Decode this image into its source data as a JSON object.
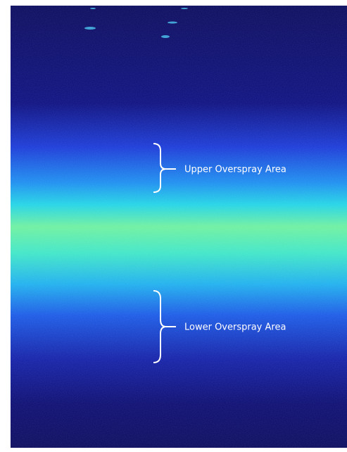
{
  "annotations": [
    {
      "label": "Upper Overspray Area"
    },
    {
      "label": "Lower Overspray Area"
    }
  ]
}
